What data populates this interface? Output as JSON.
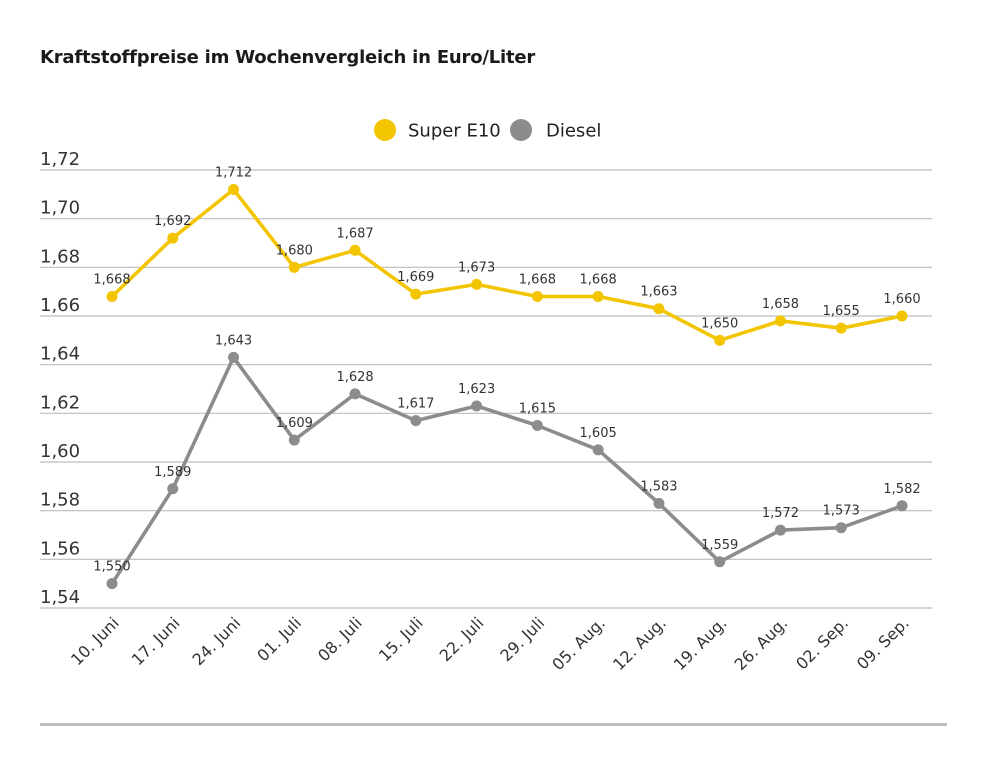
{
  "chart_data": {
    "type": "line",
    "title": "Kraftstoffpreise im Wochenvergleich in Euro/Liter",
    "categories": [
      "10. Juni",
      "17. Juni",
      "24. Juni",
      "01. Juli",
      "08. Juli",
      "15. Juli",
      "22. Juli",
      "29. Juli",
      "05. Aug.",
      "12. Aug.",
      "19. Aug.",
      "26. Aug.",
      "02. Sep.",
      "09. Sep."
    ],
    "series": [
      {
        "name": "Super E10",
        "color": "#f2c500",
        "values": [
          1.668,
          1.692,
          1.712,
          1.68,
          1.687,
          1.669,
          1.673,
          1.668,
          1.668,
          1.663,
          1.65,
          1.658,
          1.655,
          1.66
        ],
        "labels": [
          "1,668",
          "1,692",
          "1,712",
          "1,680",
          "1,687",
          "1,669",
          "1,673",
          "1,668",
          "1,668",
          "1,663",
          "1,650",
          "1,658",
          "1,655",
          "1,660"
        ]
      },
      {
        "name": "Diesel",
        "color": "#8c8c8c",
        "values": [
          1.55,
          1.589,
          1.643,
          1.609,
          1.628,
          1.617,
          1.623,
          1.615,
          1.605,
          1.583,
          1.559,
          1.572,
          1.573,
          1.582
        ],
        "labels": [
          "1,550",
          "1,589",
          "1,643",
          "1,609",
          "1,628",
          "1,617",
          "1,623",
          "1,615",
          "1,605",
          "1,583",
          "1,559",
          "1,572",
          "1,573",
          "1,582"
        ]
      }
    ],
    "ylim": [
      1.54,
      1.72
    ],
    "yticks": [
      1.72,
      1.7,
      1.68,
      1.66,
      1.64,
      1.62,
      1.6,
      1.58,
      1.56,
      1.54
    ],
    "ytick_labels": [
      "1,72",
      "1,70",
      "1,68",
      "1,66",
      "1,64",
      "1,62",
      "1,60",
      "1,58",
      "1,56",
      "1,54"
    ],
    "grid": true,
    "legend_position": "top-center"
  }
}
